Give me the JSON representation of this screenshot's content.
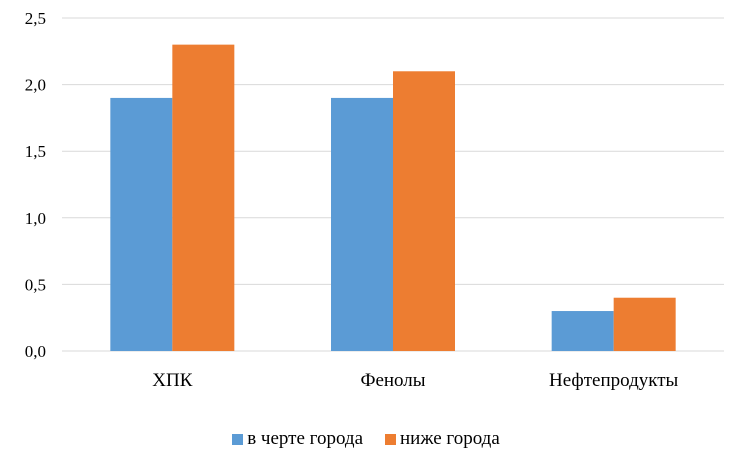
{
  "chart_data": {
    "type": "bar",
    "categories": [
      "ХПК",
      "Фенолы",
      "Нефтепродукты"
    ],
    "series": [
      {
        "name": "в черте города",
        "color": "#5b9bd5",
        "values": [
          1.9,
          1.9,
          0.3
        ]
      },
      {
        "name": "ниже города",
        "color": "#ed7d31",
        "values": [
          2.3,
          2.1,
          0.4
        ]
      }
    ],
    "ylim": [
      0,
      2.5
    ],
    "yticks": [
      "0,0",
      "0,5",
      "1,0",
      "1,5",
      "2,0",
      "2,5"
    ],
    "grid": true,
    "legend_position": "bottom"
  }
}
